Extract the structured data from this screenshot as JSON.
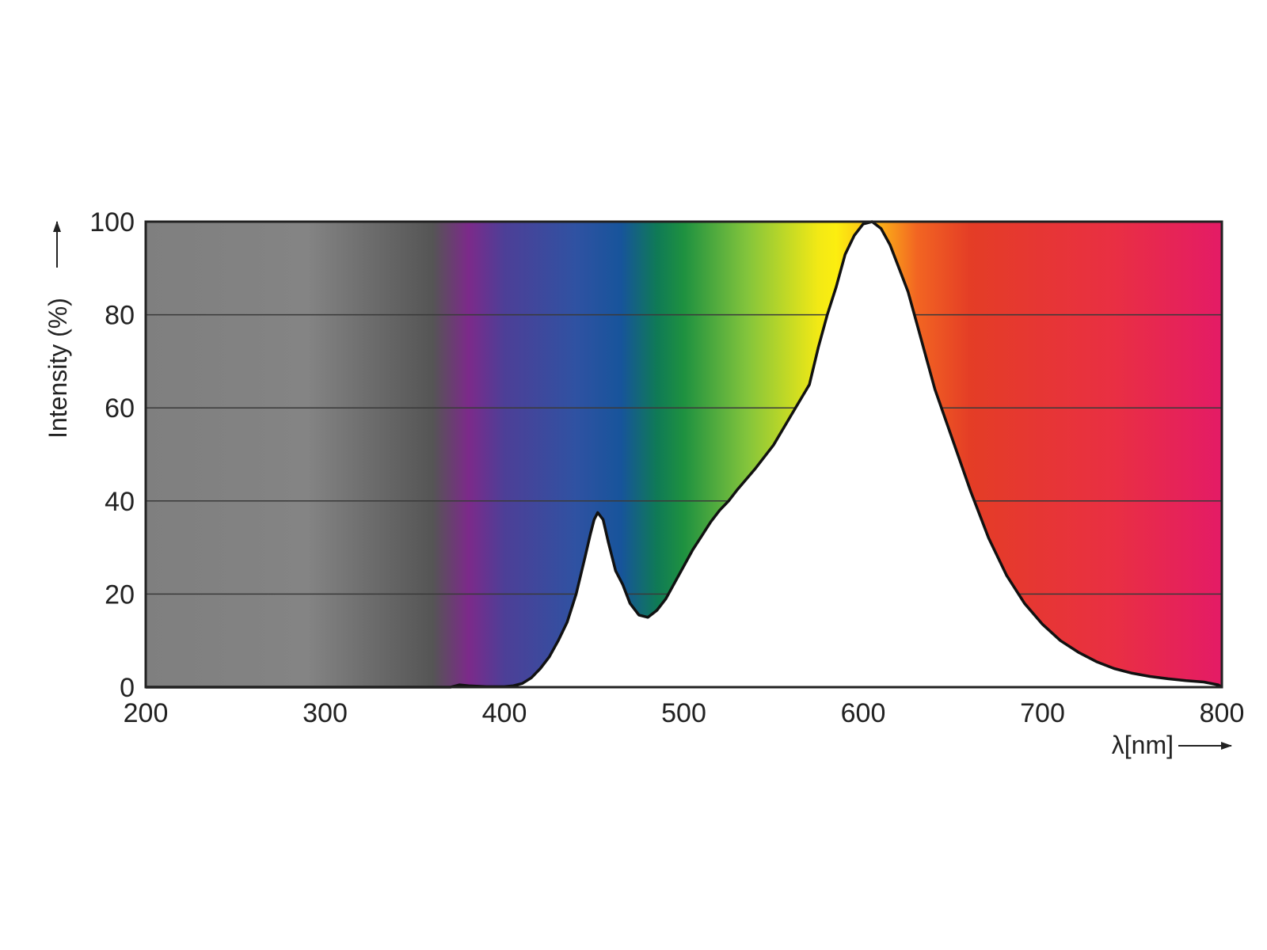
{
  "chart_data": {
    "type": "area",
    "xlabel": "λ[nm]",
    "ylabel": "Intensity (%)",
    "xlim": [
      200,
      800
    ],
    "ylim": [
      0,
      100
    ],
    "x_ticks": [
      200,
      300,
      400,
      500,
      600,
      700,
      800
    ],
    "y_ticks": [
      0,
      20,
      40,
      60,
      80,
      100
    ],
    "grid": "horizontal",
    "background": "visible-spectrum gradient",
    "spectrum_stops": [
      {
        "nm": 200,
        "color": "#7f7f7f"
      },
      {
        "nm": 290,
        "color": "#848484"
      },
      {
        "nm": 360,
        "color": "#555555"
      },
      {
        "nm": 380,
        "color": "#7c2a8a"
      },
      {
        "nm": 400,
        "color": "#4d3f97"
      },
      {
        "nm": 440,
        "color": "#2f52a2"
      },
      {
        "nm": 465,
        "color": "#17549b"
      },
      {
        "nm": 485,
        "color": "#0f7a56"
      },
      {
        "nm": 500,
        "color": "#1e9140"
      },
      {
        "nm": 535,
        "color": "#82c43c"
      },
      {
        "nm": 575,
        "color": "#f2e915"
      },
      {
        "nm": 585,
        "color": "#fcee10"
      },
      {
        "nm": 610,
        "color": "#fbad18"
      },
      {
        "nm": 630,
        "color": "#f26522"
      },
      {
        "nm": 660,
        "color": "#e43d26"
      },
      {
        "nm": 740,
        "color": "#e92f43"
      },
      {
        "nm": 800,
        "color": "#e41b66"
      }
    ],
    "x": [
      200,
      370,
      375,
      380,
      390,
      400,
      405,
      410,
      415,
      420,
      425,
      430,
      435,
      440,
      445,
      448,
      450,
      452,
      455,
      458,
      462,
      466,
      470,
      475,
      480,
      485,
      490,
      495,
      500,
      505,
      510,
      515,
      520,
      525,
      530,
      540,
      550,
      560,
      570,
      575,
      580,
      585,
      590,
      595,
      600,
      605,
      610,
      615,
      620,
      625,
      630,
      640,
      650,
      660,
      670,
      680,
      690,
      700,
      710,
      720,
      730,
      740,
      750,
      760,
      770,
      780,
      790,
      798,
      800
    ],
    "series": [
      {
        "values": [
          0,
          0,
          0.5,
          0.3,
          0.1,
          0.1,
          0.3,
          0.8,
          2,
          4,
          6.5,
          10,
          14,
          20,
          28,
          33,
          36,
          37.5,
          36,
          31,
          25,
          22,
          18,
          15.5,
          15,
          16.5,
          19,
          22.5,
          26,
          29.5,
          32.5,
          35.5,
          38,
          40,
          42.5,
          47,
          52,
          58.5,
          65,
          73,
          80,
          86,
          93,
          97,
          99.5,
          100,
          98.5,
          95,
          90,
          85,
          78,
          64,
          53,
          42,
          32,
          24,
          18,
          13.5,
          10,
          7.5,
          5.5,
          4,
          3,
          2.3,
          1.8,
          1.4,
          1.1,
          0.5,
          0
        ]
      }
    ]
  }
}
